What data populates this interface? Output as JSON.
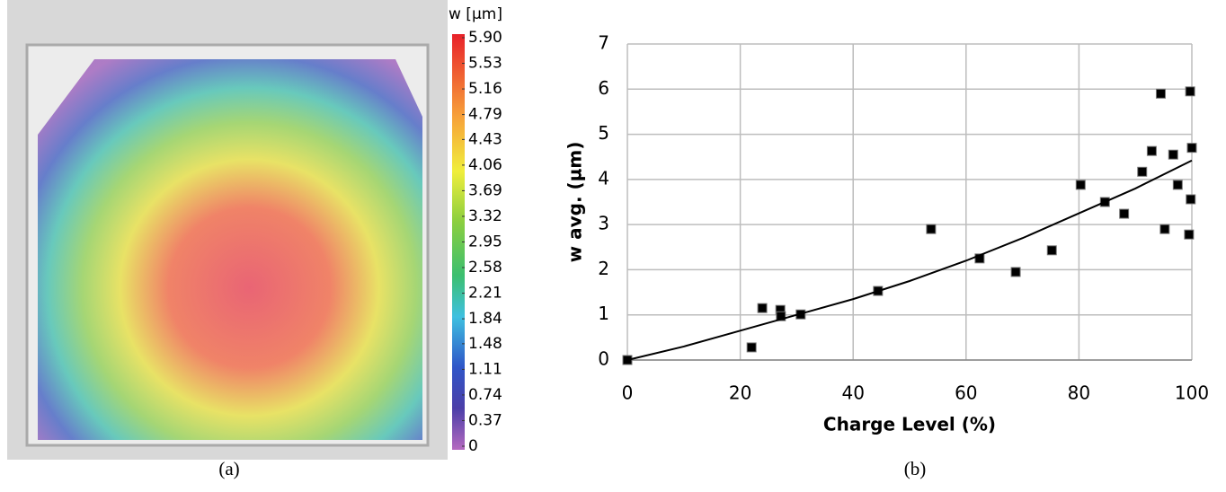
{
  "chart_data": [
    {
      "type": "image",
      "caption": "(a)",
      "colorbar_label": "w [µm]",
      "clim": [
        0,
        5.9
      ],
      "colorbar_ticks": [
        {
          "value": 5.9,
          "label": "5.90"
        },
        5.53,
        5.16,
        4.79,
        4.43,
        4.06,
        3.69,
        3.32,
        2.95,
        2.58,
        2.21,
        1.84,
        1.48,
        1.11,
        0.74,
        0.37,
        0
      ]
    },
    {
      "type": "scatter",
      "caption": "(b)",
      "xlabel": "Charge Level (%)",
      "ylabel": "w avg. (µm)",
      "xlim": [
        0,
        100
      ],
      "ylim": [
        0,
        7
      ],
      "xticks": [
        0,
        20,
        40,
        60,
        80,
        100
      ],
      "yticks": [
        0,
        1,
        2,
        3,
        4,
        5,
        6,
        7
      ],
      "grid": true,
      "series": [
        {
          "style": "markers",
          "color": "#000000",
          "x": [
            0,
            22.0,
            23.9,
            27.1,
            27.2,
            30.7,
            44.4,
            53.8,
            62.4,
            68.8,
            75.2,
            80.3,
            84.6,
            88.0,
            91.2,
            92.9,
            94.5,
            95.2,
            96.7,
            97.5,
            99.5,
            99.7,
            100,
            99.8
          ],
          "values": [
            0,
            0.28,
            1.15,
            1.11,
            0.97,
            1.01,
            1.53,
            2.9,
            2.25,
            1.95,
            2.43,
            3.88,
            3.5,
            3.24,
            4.17,
            4.63,
            5.9,
            2.9,
            4.55,
            3.88,
            2.78,
            5.95,
            4.7,
            3.56
          ]
        },
        {
          "style": "line",
          "color": "#000000",
          "x": [
            0,
            10,
            20,
            30,
            40,
            50,
            60,
            70,
            80,
            90,
            100
          ],
          "values": [
            0,
            0.3,
            0.65,
            1.0,
            1.35,
            1.75,
            2.2,
            2.7,
            3.25,
            3.8,
            4.42
          ]
        }
      ]
    }
  ]
}
